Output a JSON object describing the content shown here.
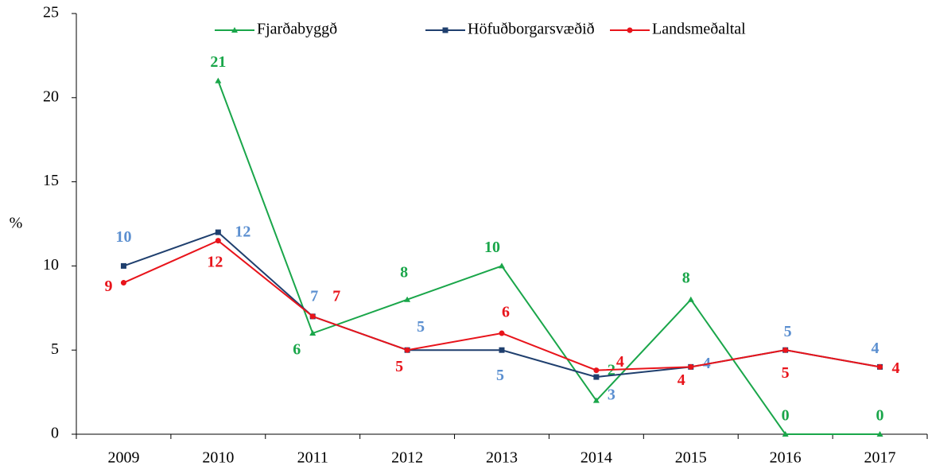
{
  "chart_data": {
    "type": "line",
    "y_label": "%",
    "categories": [
      "2009",
      "2010",
      "2011",
      "2012",
      "2013",
      "2014",
      "2015",
      "2016",
      "2017"
    ],
    "series": [
      {
        "name": "Fjarðabyggð",
        "color": "#1aa64a",
        "label_color": "#1aa64a",
        "marker": "triangle",
        "values": [
          null,
          21,
          6,
          8,
          10,
          2,
          8,
          0,
          0
        ]
      },
      {
        "name": "Höfuðborgarsvæðið",
        "color": "#1f3f6e",
        "label_color": "#5b8fd0",
        "marker": "square",
        "values": [
          10,
          12,
          7,
          5,
          5,
          3.4,
          4,
          5,
          4
        ],
        "value_labels": [
          "10",
          "12",
          "7",
          "5",
          "5",
          "3",
          "4",
          "5",
          "4"
        ]
      },
      {
        "name": "Landsmeðaltal",
        "color": "#e8141b",
        "label_color": "#e8141b",
        "marker": "circle",
        "values": [
          9,
          11.5,
          7,
          5,
          6,
          3.8,
          4,
          5,
          4
        ],
        "value_labels": [
          "9",
          "12",
          "7",
          "5",
          "6",
          "4",
          "4",
          "5",
          "4"
        ]
      }
    ],
    "ylim": [
      0,
      25
    ],
    "yticks": [
      0,
      5,
      10,
      15,
      20,
      25
    ],
    "grid": false,
    "legend": "top"
  }
}
